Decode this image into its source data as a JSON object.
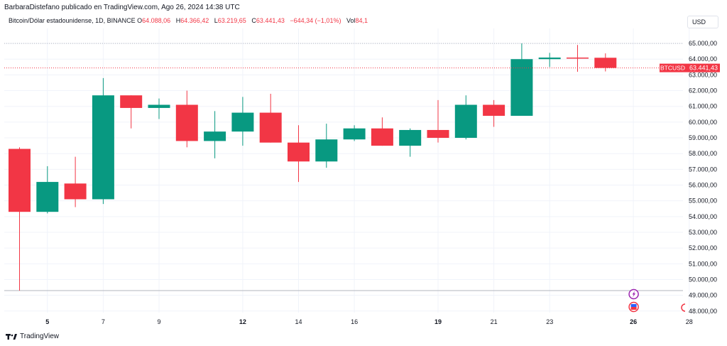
{
  "header": {
    "published_line": "BarbaraDistefano publicado en TradingView.com, Ago 26, 2024 14:38 UTC"
  },
  "legend": {
    "symbol_text": "Bitcoin/Dólar estadounidense, 1D, BINANCE",
    "open_label": "O",
    "open_value": "64.088,06",
    "high_label": "H",
    "high_value": "64.366,42",
    "low_label": "L",
    "low_value": "63.219,65",
    "close_label": "C",
    "close_value": "63.441,43",
    "change_value": "−644,34 (−1,01%)",
    "vol_label": "Vol",
    "vol_value": "84,1"
  },
  "currency": "USD",
  "price_tag": {
    "symbol": "BTCUSD",
    "price": "63.441,43",
    "value": 63441.43
  },
  "footer": {
    "brand": "TradingView"
  },
  "colors": {
    "up": "#089981",
    "down": "#f23645",
    "grid": "#f0f3fa",
    "axis_text": "#131722"
  },
  "chart_data": {
    "type": "candlestick",
    "title": "Bitcoin/Dólar estadounidense, 1D, BINANCE",
    "x_ticks": [
      {
        "day": 5,
        "label": "5",
        "bold": true
      },
      {
        "day": 7,
        "label": "7",
        "bold": false
      },
      {
        "day": 9,
        "label": "9",
        "bold": false
      },
      {
        "day": 12,
        "label": "12",
        "bold": true
      },
      {
        "day": 14,
        "label": "14",
        "bold": false
      },
      {
        "day": 16,
        "label": "16",
        "bold": false
      },
      {
        "day": 19,
        "label": "19",
        "bold": true
      },
      {
        "day": 21,
        "label": "21",
        "bold": false
      },
      {
        "day": 23,
        "label": "23",
        "bold": false
      },
      {
        "day": 26,
        "label": "26",
        "bold": true
      },
      {
        "day": 28,
        "label": "28",
        "bold": false
      }
    ],
    "y_ticks": [
      "48.000,00",
      "49.000,00",
      "50.000,00",
      "51.000,00",
      "52.000,00",
      "53.000,00",
      "54.000,00",
      "55.000,00",
      "56.000,00",
      "57.000,00",
      "58.000,00",
      "59.000,00",
      "60.000,00",
      "61.000,00",
      "62.000,00",
      "63.000,00",
      "64.000,00",
      "65.000,00"
    ],
    "y_tick_values": [
      48000,
      49000,
      50000,
      51000,
      52000,
      53000,
      54000,
      55000,
      56000,
      57000,
      58000,
      59000,
      60000,
      61000,
      62000,
      63000,
      64000,
      65000
    ],
    "ylim": [
      47900,
      65500
    ],
    "candles": [
      {
        "day": 4,
        "o": 58300,
        "h": 58400,
        "l": 49300,
        "c": 54300
      },
      {
        "day": 5,
        "o": 54300,
        "h": 57200,
        "l": 54200,
        "c": 56200
      },
      {
        "day": 6,
        "o": 56100,
        "h": 57800,
        "l": 54600,
        "c": 55100
      },
      {
        "day": 7,
        "o": 55100,
        "h": 62800,
        "l": 54800,
        "c": 61700
      },
      {
        "day": 8,
        "o": 61700,
        "h": 61700,
        "l": 59600,
        "c": 60900
      },
      {
        "day": 9,
        "o": 60900,
        "h": 61500,
        "l": 60200,
        "c": 61100
      },
      {
        "day": 10,
        "o": 61100,
        "h": 62000,
        "l": 58400,
        "c": 58800
      },
      {
        "day": 11,
        "o": 58800,
        "h": 60700,
        "l": 57700,
        "c": 59400
      },
      {
        "day": 12,
        "o": 59400,
        "h": 61600,
        "l": 58500,
        "c": 60600
      },
      {
        "day": 13,
        "o": 60600,
        "h": 61800,
        "l": 58700,
        "c": 58700
      },
      {
        "day": 14,
        "o": 58700,
        "h": 59800,
        "l": 56200,
        "c": 57500
      },
      {
        "day": 15,
        "o": 57500,
        "h": 59900,
        "l": 57100,
        "c": 58900
      },
      {
        "day": 16,
        "o": 58900,
        "h": 59800,
        "l": 58800,
        "c": 59600
      },
      {
        "day": 17,
        "o": 59600,
        "h": 60300,
        "l": 58500,
        "c": 58500
      },
      {
        "day": 18,
        "o": 58500,
        "h": 59600,
        "l": 57800,
        "c": 59500
      },
      {
        "day": 19,
        "o": 59500,
        "h": 61400,
        "l": 58700,
        "c": 59000
      },
      {
        "day": 20,
        "o": 59000,
        "h": 61700,
        "l": 58900,
        "c": 61100
      },
      {
        "day": 21,
        "o": 61100,
        "h": 61400,
        "l": 59700,
        "c": 60400
      },
      {
        "day": 22,
        "o": 60400,
        "h": 65000,
        "l": 60400,
        "c": 64000
      },
      {
        "day": 23,
        "o": 64000,
        "h": 64400,
        "l": 63500,
        "c": 64100
      },
      {
        "day": 24,
        "o": 64100,
        "h": 64900,
        "l": 63200,
        "c": 64050
      },
      {
        "day": 25,
        "o": 64088.06,
        "h": 64366.42,
        "l": 63219.65,
        "c": 63441.43
      }
    ]
  }
}
